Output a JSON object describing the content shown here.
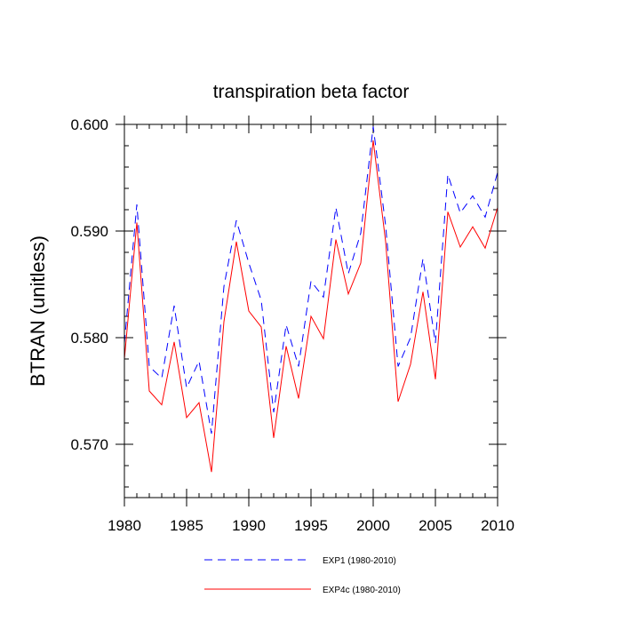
{
  "chart_data": {
    "type": "line",
    "title": "transpiration beta factor",
    "xlabel": "",
    "ylabel": "BTRAN  (unitless)",
    "xlim": [
      1980,
      2010
    ],
    "ylim": [
      0.565,
      0.6
    ],
    "x_ticks": [
      1980,
      1985,
      1990,
      1995,
      2000,
      2005,
      2010
    ],
    "y_ticks": [
      "0.570",
      "0.580",
      "0.590",
      "0.600"
    ],
    "y_tick_values": [
      0.57,
      0.58,
      0.59,
      0.6
    ],
    "x": [
      1980,
      1981,
      1982,
      1983,
      1984,
      1985,
      1986,
      1987,
      1988,
      1989,
      1990,
      1991,
      1992,
      1993,
      1994,
      1995,
      1996,
      1997,
      1998,
      1999,
      2000,
      2001,
      2002,
      2003,
      2004,
      2005,
      2006,
      2007,
      2008,
      2009,
      2010
    ],
    "grid": false,
    "legend_position": "bottom",
    "series": [
      {
        "name": "EXP1 (1980-2010)",
        "color": "#0000ff",
        "style": "dashed",
        "values": [
          0.5795,
          0.5925,
          0.5773,
          0.5762,
          0.583,
          0.5753,
          0.5778,
          0.571,
          0.5848,
          0.591,
          0.587,
          0.5835,
          0.573,
          0.5812,
          0.5773,
          0.5853,
          0.5838,
          0.5922,
          0.586,
          0.5898,
          0.5998,
          0.5905,
          0.5773,
          0.58,
          0.5874,
          0.5795,
          0.5953,
          0.5917,
          0.5933,
          0.5913,
          0.5955
        ]
      },
      {
        "name": "EXP4c (1980-2010)",
        "color": "#ff0000",
        "style": "solid",
        "values": [
          0.578,
          0.5908,
          0.575,
          0.5737,
          0.5796,
          0.5725,
          0.5739,
          0.5674,
          0.5815,
          0.589,
          0.5825,
          0.581,
          0.5706,
          0.5792,
          0.5743,
          0.582,
          0.5799,
          0.5892,
          0.5841,
          0.587,
          0.5985,
          0.589,
          0.574,
          0.5775,
          0.5843,
          0.5761,
          0.5918,
          0.5885,
          0.5904,
          0.5884,
          0.5922
        ]
      }
    ]
  }
}
